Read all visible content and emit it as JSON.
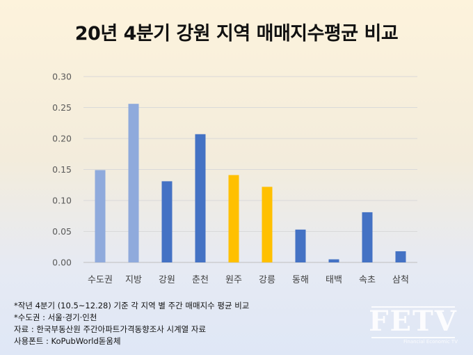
{
  "title": "20년 4분기 강원 지역 매매지수평균 비교",
  "chart_data": {
    "type": "bar",
    "categories": [
      "수도권",
      "지방",
      "강원",
      "춘천",
      "원주",
      "강릉",
      "동해",
      "태백",
      "속초",
      "삼척"
    ],
    "values": [
      0.149,
      0.256,
      0.131,
      0.207,
      0.141,
      0.122,
      0.053,
      0.005,
      0.081,
      0.018
    ],
    "colors": [
      "#8faadc",
      "#8faadc",
      "#4472c4",
      "#4472c4",
      "#ffc000",
      "#ffc000",
      "#4472c4",
      "#4472c4",
      "#4472c4",
      "#4472c4"
    ],
    "ylim": [
      0,
      0.3
    ],
    "yticks": [
      "0.00",
      "0.05",
      "0.10",
      "0.15",
      "0.20",
      "0.25",
      "0.30"
    ],
    "grid": true
  },
  "notes": [
    "*작년 4분기 (10.5~12.28) 기준 각 지역 별 주간 매매지수 평균 비교",
    "*수도권 : 서울·경기·인천",
    "자료 : 한국부동산원 주간아파트가격동향조사 시계열 자료",
    "사용폰트 : KoPubWorld돋움체"
  ],
  "logo": {
    "text": "FETV",
    "subtitle": "Financial Economic TV"
  }
}
